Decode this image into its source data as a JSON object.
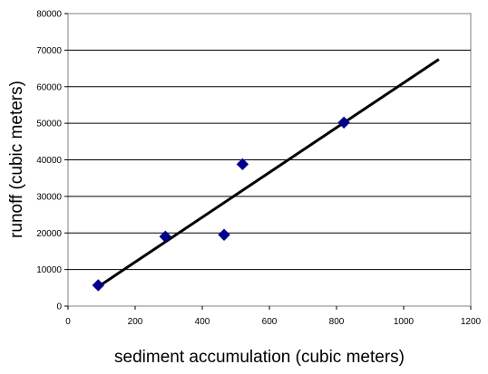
{
  "chart_data": {
    "type": "scatter",
    "title": "",
    "xlabel": "sediment accumulation (cubic meters)",
    "ylabel": "runoff (cubic meters)",
    "xlim": [
      0,
      1200
    ],
    "ylim": [
      0,
      80000
    ],
    "xticks": [
      0,
      200,
      400,
      600,
      800,
      1000,
      1200
    ],
    "yticks": [
      0,
      10000,
      20000,
      30000,
      40000,
      50000,
      60000,
      70000,
      80000
    ],
    "grid": "horizontal",
    "legend": "none",
    "series": [
      {
        "marker": "diamond",
        "color": "#00008b",
        "points": [
          {
            "x": 90,
            "y": 5700
          },
          {
            "x": 290,
            "y": 19000
          },
          {
            "x": 465,
            "y": 19500
          },
          {
            "x": 520,
            "y": 38800
          },
          {
            "x": 822,
            "y": 50200
          }
        ]
      }
    ],
    "trendline": {
      "type": "linear",
      "color": "#000000",
      "x": [
        90,
        1105
      ],
      "y": [
        5300,
        67500
      ]
    }
  }
}
